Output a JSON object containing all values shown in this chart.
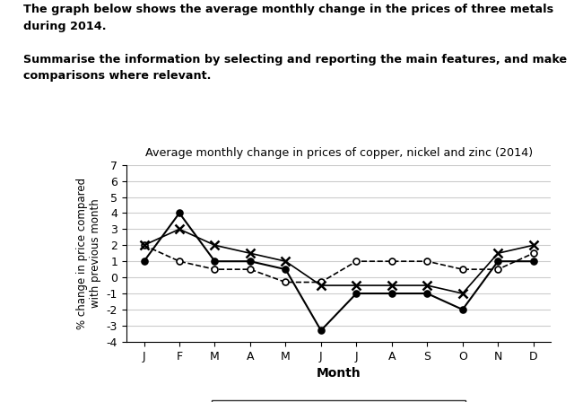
{
  "title": "Average monthly change in prices of copper, nickel and zinc (2014)",
  "xlabel": "Month",
  "ylabel": "% change in price compared\nwith previous month",
  "months": [
    "J",
    "F",
    "M",
    "A",
    "M",
    "J",
    "J",
    "A",
    "S",
    "O",
    "N",
    "D"
  ],
  "copper": [
    2.0,
    1.0,
    0.5,
    0.5,
    -0.3,
    -0.3,
    1.0,
    1.0,
    1.0,
    0.5,
    0.5,
    1.5
  ],
  "nickel": [
    1.0,
    4.0,
    1.0,
    1.0,
    0.5,
    -3.3,
    -1.0,
    -1.0,
    -1.0,
    -2.0,
    1.0,
    1.0
  ],
  "zinc": [
    2.0,
    3.0,
    2.0,
    1.5,
    1.0,
    -0.5,
    -0.5,
    -0.5,
    -0.5,
    -1.0,
    1.5,
    2.0
  ],
  "ylim": [
    -4,
    7
  ],
  "yticks": [
    -4,
    -3,
    -2,
    -1,
    0,
    1,
    2,
    3,
    4,
    5,
    6,
    7
  ],
  "header_text": "The graph below shows the average monthly change in the prices of three metals\nduring 2014.\n\nSummarise the information by selecting and reporting the main features, and make\ncomparisons where relevant.",
  "bg_color": "#ffffff",
  "text_color": "#000000",
  "grid_color": "#cccccc"
}
